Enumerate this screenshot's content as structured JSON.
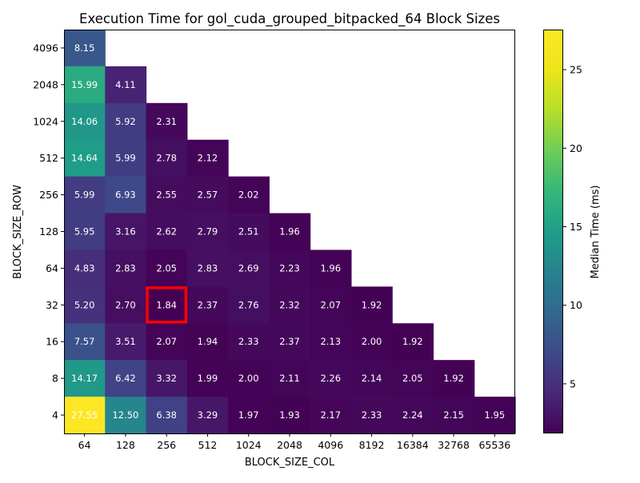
{
  "chart_data": {
    "type": "heatmap",
    "title": "Execution Time for gol_cuda_grouped_bitpacked_64 Block Sizes",
    "xlabel": "BLOCK_SIZE_COL",
    "ylabel": "BLOCK_SIZE_ROW",
    "colorbar_label": "Median Time (ms)",
    "colormap": "viridis",
    "color_range": [
      1.84,
      27.55
    ],
    "colorbar_ticks": [
      "5",
      "10",
      "15",
      "20",
      "25"
    ],
    "x_categories": [
      "64",
      "128",
      "256",
      "512",
      "1024",
      "2048",
      "4096",
      "8192",
      "16384",
      "32768",
      "65536"
    ],
    "y_categories": [
      "4096",
      "2048",
      "1024",
      "512",
      "256",
      "128",
      "64",
      "32",
      "16",
      "8",
      "4"
    ],
    "values": [
      [
        8.15,
        null,
        null,
        null,
        null,
        null,
        null,
        null,
        null,
        null,
        null
      ],
      [
        15.99,
        4.11,
        null,
        null,
        null,
        null,
        null,
        null,
        null,
        null,
        null
      ],
      [
        14.06,
        5.92,
        2.31,
        null,
        null,
        null,
        null,
        null,
        null,
        null,
        null
      ],
      [
        14.64,
        5.99,
        2.78,
        2.12,
        null,
        null,
        null,
        null,
        null,
        null,
        null
      ],
      [
        5.99,
        6.93,
        2.55,
        2.57,
        2.02,
        null,
        null,
        null,
        null,
        null,
        null
      ],
      [
        5.95,
        3.16,
        2.62,
        2.79,
        2.51,
        1.96,
        null,
        null,
        null,
        null,
        null
      ],
      [
        4.83,
        2.83,
        2.05,
        2.83,
        2.69,
        2.23,
        1.96,
        null,
        null,
        null,
        null
      ],
      [
        5.2,
        2.7,
        1.84,
        2.37,
        2.76,
        2.32,
        2.07,
        1.92,
        null,
        null,
        null
      ],
      [
        7.57,
        3.51,
        2.07,
        1.94,
        2.33,
        2.37,
        2.13,
        2.0,
        1.92,
        null,
        null
      ],
      [
        14.17,
        6.42,
        3.32,
        1.99,
        2.0,
        2.11,
        2.26,
        2.14,
        2.05,
        1.92,
        null
      ],
      [
        27.55,
        12.5,
        6.38,
        3.29,
        1.97,
        1.93,
        2.17,
        2.33,
        2.24,
        2.15,
        1.95
      ]
    ],
    "highlight": {
      "row": "32",
      "col": "256",
      "color": "#ff0000"
    }
  }
}
